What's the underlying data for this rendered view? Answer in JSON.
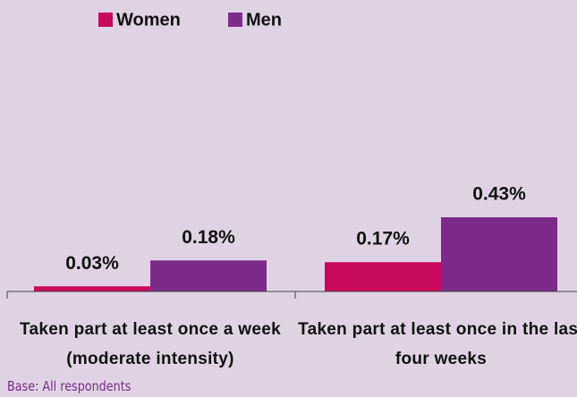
{
  "chart_data": {
    "type": "bar",
    "categories": [
      "Taken part at least once a week (moderate intensity)",
      "Taken part at least once in the last four weeks"
    ],
    "series": [
      {
        "name": "Women",
        "color": "#c8085a",
        "values": [
          0.03,
          0.17
        ],
        "value_labels": [
          "0.03%",
          "0.17%"
        ]
      },
      {
        "name": "Men",
        "color": "#7d2b8b",
        "values": [
          0.18,
          0.43
        ],
        "value_labels": [
          "0.18%",
          "0.43%"
        ]
      }
    ],
    "note": "Base: All respondents"
  }
}
